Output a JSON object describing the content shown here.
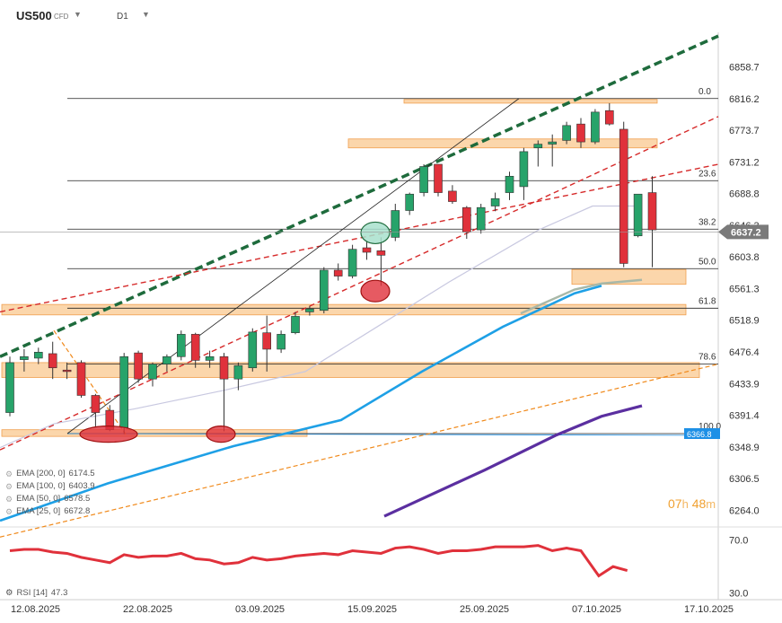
{
  "header": {
    "symbol": "US500",
    "instrument_type": "CFD",
    "timeframe": "D1"
  },
  "timer": {
    "hours": "07",
    "h_unit": "h",
    "minutes": "48",
    "m_unit": "m"
  },
  "legend": [
    {
      "label": "EMA [200, 0]",
      "value": "6174.5",
      "color": "#5b2fa0"
    },
    {
      "label": "EMA [100, 0]",
      "value": "6403.9",
      "color": "#1ea0e6"
    },
    {
      "label": "EMA [50, 0]",
      "value": "6578.5",
      "color": "#a8b8a8"
    },
    {
      "label": "EMA [25, 0]",
      "value": "6672.8",
      "color": "#c8c8e0"
    }
  ],
  "rsi_legend": {
    "label": "RSI [14]",
    "value": "47.3"
  },
  "colors": {
    "bull": "#27a36a",
    "bear": "#e0313b",
    "zone": "#f9c88f",
    "fib": "#222222",
    "green_trend": "#1e6b3c",
    "red_trend": "#d62a2a",
    "orange_trend": "#f08a1c",
    "rsi": "#e0313b",
    "price_tag": "#7a7a7a",
    "fib100_tag": "#1e90e6"
  },
  "chart_data": {
    "type": "candlestick",
    "timeframe": "D1",
    "y_axis": {
      "ylim": [
        6250,
        6905
      ],
      "ticks": [
        "6858.7",
        "6816.2",
        "6773.7",
        "6731.2",
        "6688.8",
        "6646.3",
        "6603.8",
        "6561.3",
        "6518.9",
        "6476.4",
        "6433.9",
        "6391.4",
        "6348.9",
        "6306.5",
        "6264.0"
      ]
    },
    "x_axis": {
      "ticks": [
        "12.08.2025",
        "22.08.2025",
        "03.09.2025",
        "15.09.2025",
        "25.09.2025",
        "07.10.2025",
        "17.10.2025"
      ]
    },
    "last_price": "6637.2",
    "candles": [
      [
        "2025-08-12",
        6395,
        6470,
        6390,
        6462
      ],
      [
        "2025-08-13",
        6466,
        6480,
        6450,
        6470
      ],
      [
        "2025-08-14",
        6468,
        6482,
        6460,
        6476
      ],
      [
        "2025-08-15",
        6474,
        6490,
        6440,
        6455
      ],
      [
        "2025-08-18",
        6452,
        6462,
        6440,
        6450
      ],
      [
        "2025-08-19",
        6462,
        6465,
        6415,
        6418
      ],
      [
        "2025-08-20",
        6418,
        6420,
        6375,
        6395
      ],
      [
        "2025-08-21",
        6398,
        6405,
        6370,
        6372
      ],
      [
        "2025-08-22",
        6375,
        6475,
        6366,
        6470
      ],
      [
        "2025-08-25",
        6475,
        6478,
        6435,
        6440
      ],
      [
        "2025-08-26",
        6440,
        6462,
        6430,
        6460
      ],
      [
        "2025-08-27",
        6460,
        6473,
        6450,
        6470
      ],
      [
        "2025-08-28",
        6470,
        6505,
        6465,
        6500
      ],
      [
        "2025-08-29",
        6500,
        6502,
        6455,
        6465
      ],
      [
        "2025-09-01",
        6465,
        6478,
        6455,
        6470
      ],
      [
        "2025-09-02",
        6470,
        6475,
        6370,
        6440
      ],
      [
        "2025-09-03",
        6440,
        6462,
        6425,
        6458
      ],
      [
        "2025-09-04",
        6455,
        6508,
        6450,
        6503
      ],
      [
        "2025-09-05",
        6502,
        6525,
        6450,
        6480
      ],
      [
        "2025-09-08",
        6480,
        6505,
        6475,
        6500
      ],
      [
        "2025-09-09",
        6502,
        6530,
        6500,
        6524
      ],
      [
        "2025-09-10",
        6530,
        6538,
        6525,
        6534
      ],
      [
        "2025-09-11",
        6532,
        6590,
        6528,
        6586
      ],
      [
        "2025-09-12",
        6586,
        6595,
        6572,
        6578
      ],
      [
        "2025-09-15",
        6578,
        6620,
        6575,
        6614
      ],
      [
        "2025-09-16",
        6616,
        6625,
        6600,
        6610
      ],
      [
        "2025-09-17",
        6612,
        6630,
        6565,
        6606
      ],
      [
        "2025-09-18",
        6630,
        6675,
        6625,
        6666
      ],
      [
        "2025-09-19",
        6666,
        6690,
        6660,
        6688
      ],
      [
        "2025-09-22",
        6690,
        6728,
        6685,
        6725
      ],
      [
        "2025-09-23",
        6728,
        6728,
        6685,
        6690
      ],
      [
        "2025-09-24",
        6692,
        6700,
        6675,
        6678
      ],
      [
        "2025-09-25",
        6670,
        6672,
        6628,
        6637
      ],
      [
        "2025-09-26",
        6640,
        6675,
        6635,
        6670
      ],
      [
        "2025-09-29",
        6672,
        6690,
        6665,
        6682
      ],
      [
        "2025-09-30",
        6690,
        6718,
        6680,
        6712
      ],
      [
        "2025-10-01",
        6698,
        6750,
        6680,
        6745
      ],
      [
        "2025-10-02",
        6750,
        6760,
        6725,
        6755
      ],
      [
        "2025-10-03",
        6755,
        6768,
        6725,
        6758
      ],
      [
        "2025-10-06",
        6760,
        6785,
        6755,
        6780
      ],
      [
        "2025-10-07",
        6782,
        6790,
        6750,
        6758
      ],
      [
        "2025-10-08",
        6758,
        6802,
        6755,
        6798
      ],
      [
        "2025-10-09",
        6800,
        6810,
        6780,
        6782
      ],
      [
        "2025-10-10",
        6775,
        6785,
        6590,
        6595
      ],
      [
        "2025-10-13",
        6632,
        6688,
        6630,
        6688
      ],
      [
        "2025-10-14",
        6690,
        6712,
        6590,
        6640
      ]
    ],
    "fib_levels": [
      {
        "label": "0.0",
        "value": 6816.2
      },
      {
        "label": "23.6",
        "value": 6706
      },
      {
        "label": "38.2",
        "value": 6641
      },
      {
        "label": "50.0",
        "value": 6588
      },
      {
        "label": "61.8",
        "value": 6535
      },
      {
        "label": "78.6",
        "value": 6460
      },
      {
        "label": "100.0",
        "value": 6366.8
      }
    ],
    "fib100_tag": "6366.8",
    "rsi": {
      "ylim": [
        25,
        80
      ],
      "ticks": [
        "70.0",
        "30.0"
      ],
      "values": [
        62,
        63,
        63,
        61,
        60,
        57,
        55,
        53,
        59,
        57,
        58,
        58,
        60,
        56,
        55,
        52,
        53,
        57,
        55,
        56,
        58,
        59,
        60,
        59,
        62,
        61,
        60,
        64,
        65,
        63,
        60,
        62,
        62,
        63,
        65,
        65,
        65,
        66,
        62,
        64,
        62,
        43,
        50,
        47
      ]
    }
  }
}
